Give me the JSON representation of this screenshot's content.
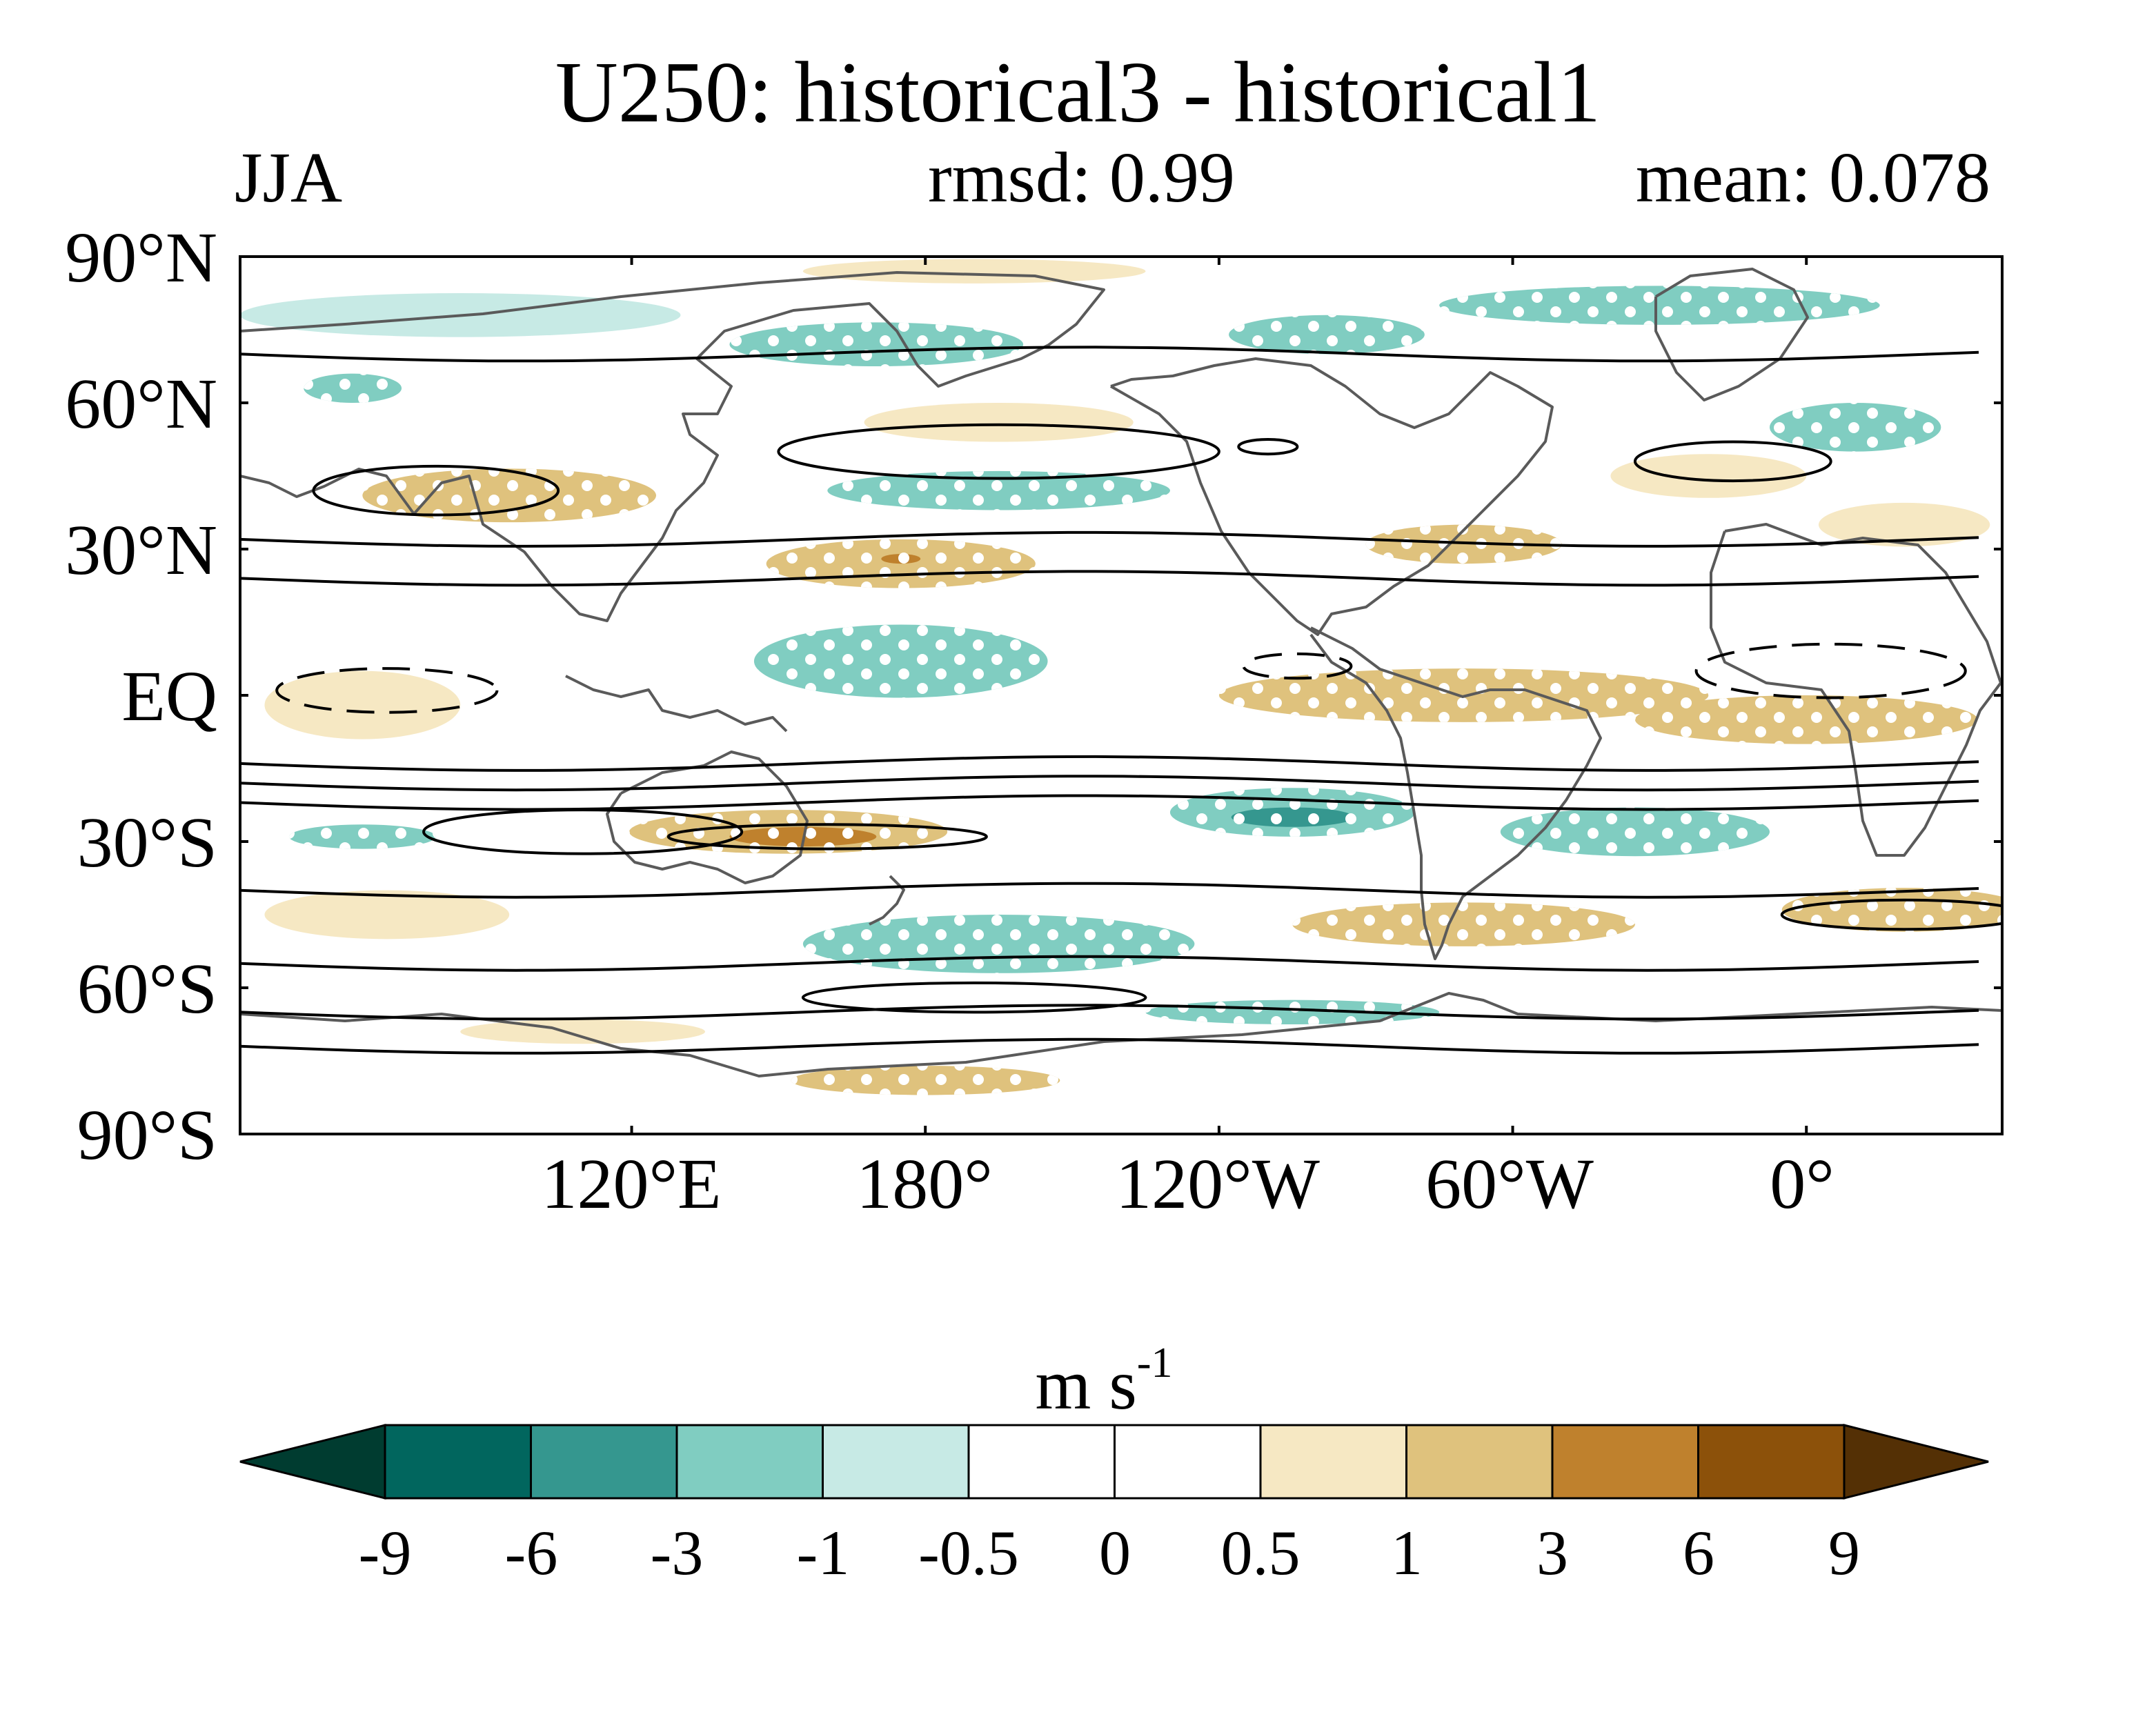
{
  "title": "U250: historical3 - historical1",
  "subtitle": {
    "season": "JJA",
    "rmsd": "rmsd: 0.99",
    "mean": "mean: 0.078"
  },
  "axes": {
    "y_ticks": [
      "90°N",
      "60°N",
      "30°N",
      "EQ",
      "30°S",
      "60°S",
      "90°S"
    ],
    "x_ticks": [
      "120°E",
      "180°",
      "120°W",
      "60°W",
      "0°"
    ]
  },
  "colorbar": {
    "units": "m s",
    "units_exp": "-1",
    "ticks": [
      "-9",
      "-6",
      "-3",
      "-1",
      "-0.5",
      "0",
      "0.5",
      "1",
      "3",
      "6",
      "9"
    ],
    "colors": [
      "#003c30",
      "#01665e",
      "#35978f",
      "#80cdc1",
      "#c7eae5",
      "#ffffff",
      "#ffffff",
      "#f6e8c3",
      "#dfc27d",
      "#bf812d",
      "#8c510a",
      "#543005"
    ]
  },
  "chart_data": {
    "type": "heatmap",
    "variable": "U250 difference",
    "title": "U250: historical3 - historical1",
    "season": "JJA",
    "rmsd": 0.99,
    "mean": 0.078,
    "units": "m s-1",
    "lon_range": [
      40,
      400
    ],
    "lat_range": [
      -90,
      90
    ],
    "levels": [
      -9,
      -6,
      -3,
      -1,
      -0.5,
      0,
      0.5,
      1,
      3,
      6,
      9
    ],
    "anomalies": [
      {
        "lon": 190,
        "lat": 87,
        "w": 70,
        "h": 5,
        "level": 0.7
      },
      {
        "lon": 85,
        "lat": 78,
        "w": 90,
        "h": 9,
        "level": -0.8
      },
      {
        "lon": 170,
        "lat": 72,
        "w": 60,
        "h": 9,
        "level": -1.8
      },
      {
        "lon": 262,
        "lat": 74,
        "w": 40,
        "h": 8,
        "level": -1.8
      },
      {
        "lon": 330,
        "lat": 80,
        "w": 90,
        "h": 8,
        "level": -1.6
      },
      {
        "lon": 63,
        "lat": 63,
        "w": 20,
        "h": 6,
        "level": -2.0
      },
      {
        "lon": 195,
        "lat": 56,
        "w": 55,
        "h": 8,
        "level": 0.8
      },
      {
        "lon": 95,
        "lat": 41,
        "w": 60,
        "h": 11,
        "level": 1.6
      },
      {
        "lon": 195,
        "lat": 42,
        "w": 70,
        "h": 8,
        "level": -1.6
      },
      {
        "lon": 175,
        "lat": 27,
        "w": 55,
        "h": 10,
        "level": 1.8
      },
      {
        "lon": 175,
        "lat": 28,
        "w": 8,
        "h": 2,
        "level": 3.5
      },
      {
        "lon": 290,
        "lat": 31,
        "w": 40,
        "h": 8,
        "level": 1.6
      },
      {
        "lon": 340,
        "lat": 45,
        "w": 40,
        "h": 9,
        "level": 0.8
      },
      {
        "lon": 380,
        "lat": 35,
        "w": 35,
        "h": 9,
        "level": 0.8
      },
      {
        "lon": 370,
        "lat": 55,
        "w": 35,
        "h": 10,
        "level": -1.5
      },
      {
        "lon": 175,
        "lat": 7,
        "w": 60,
        "h": 15,
        "level": -1.8
      },
      {
        "lon": 65,
        "lat": -2,
        "w": 40,
        "h": 14,
        "level": 0.8
      },
      {
        "lon": 290,
        "lat": 0,
        "w": 100,
        "h": 11,
        "level": 1.7
      },
      {
        "lon": 360,
        "lat": -5,
        "w": 70,
        "h": 10,
        "level": 1.5
      },
      {
        "lon": 152,
        "lat": -28,
        "w": 65,
        "h": 9,
        "level": 1.9
      },
      {
        "lon": 155,
        "lat": -29,
        "w": 30,
        "h": 4,
        "level": 3.5
      },
      {
        "lon": 255,
        "lat": -24,
        "w": 50,
        "h": 10,
        "level": -2.2
      },
      {
        "lon": 255,
        "lat": -25,
        "w": 25,
        "h": 4,
        "level": -3.5
      },
      {
        "lon": 325,
        "lat": -28,
        "w": 55,
        "h": 10,
        "level": -1.5
      },
      {
        "lon": 65,
        "lat": -29,
        "w": 30,
        "h": 5,
        "level": -1.4
      },
      {
        "lon": 70,
        "lat": -45,
        "w": 50,
        "h": 10,
        "level": 0.8
      },
      {
        "lon": 290,
        "lat": -47,
        "w": 70,
        "h": 9,
        "level": 1.6
      },
      {
        "lon": 380,
        "lat": -44,
        "w": 50,
        "h": 9,
        "level": 1.5
      },
      {
        "lon": 195,
        "lat": -51,
        "w": 80,
        "h": 12,
        "level": -1.7
      },
      {
        "lon": 255,
        "lat": -65,
        "w": 60,
        "h": 5,
        "level": -1.5
      },
      {
        "lon": 180,
        "lat": -79,
        "w": 55,
        "h": 6,
        "level": 1.6
      },
      {
        "lon": 110,
        "lat": -69,
        "w": 50,
        "h": 5,
        "level": 0.7
      }
    ],
    "contours_solid": [
      {
        "lon": 80,
        "lat": 42,
        "w": 50,
        "h": 10
      },
      {
        "lon": 195,
        "lat": 50,
        "w": 90,
        "h": 11
      },
      {
        "lon": 345,
        "lat": 48,
        "w": 40,
        "h": 8
      },
      {
        "lon": 250,
        "lat": 51,
        "w": 12,
        "h": 3
      },
      {
        "lon": 110,
        "lat": -28,
        "w": 65,
        "h": 9
      },
      {
        "lon": 160,
        "lat": -29,
        "w": 65,
        "h": 5
      },
      {
        "lon": 380,
        "lat": -45,
        "w": 50,
        "h": 6
      },
      {
        "lon": 190,
        "lat": -62,
        "w": 70,
        "h": 6
      }
    ],
    "contours_dashed": [
      {
        "lon": 256,
        "lat": 6,
        "w": 22,
        "h": 5
      },
      {
        "lon": 365,
        "lat": 5,
        "w": 55,
        "h": 11
      },
      {
        "lon": 70,
        "lat": 1,
        "w": 45,
        "h": 9
      }
    ],
    "zonal_lines_lat": [
      70,
      32,
      24,
      -14,
      -18,
      -22,
      -40,
      -55,
      -65,
      -72
    ]
  }
}
